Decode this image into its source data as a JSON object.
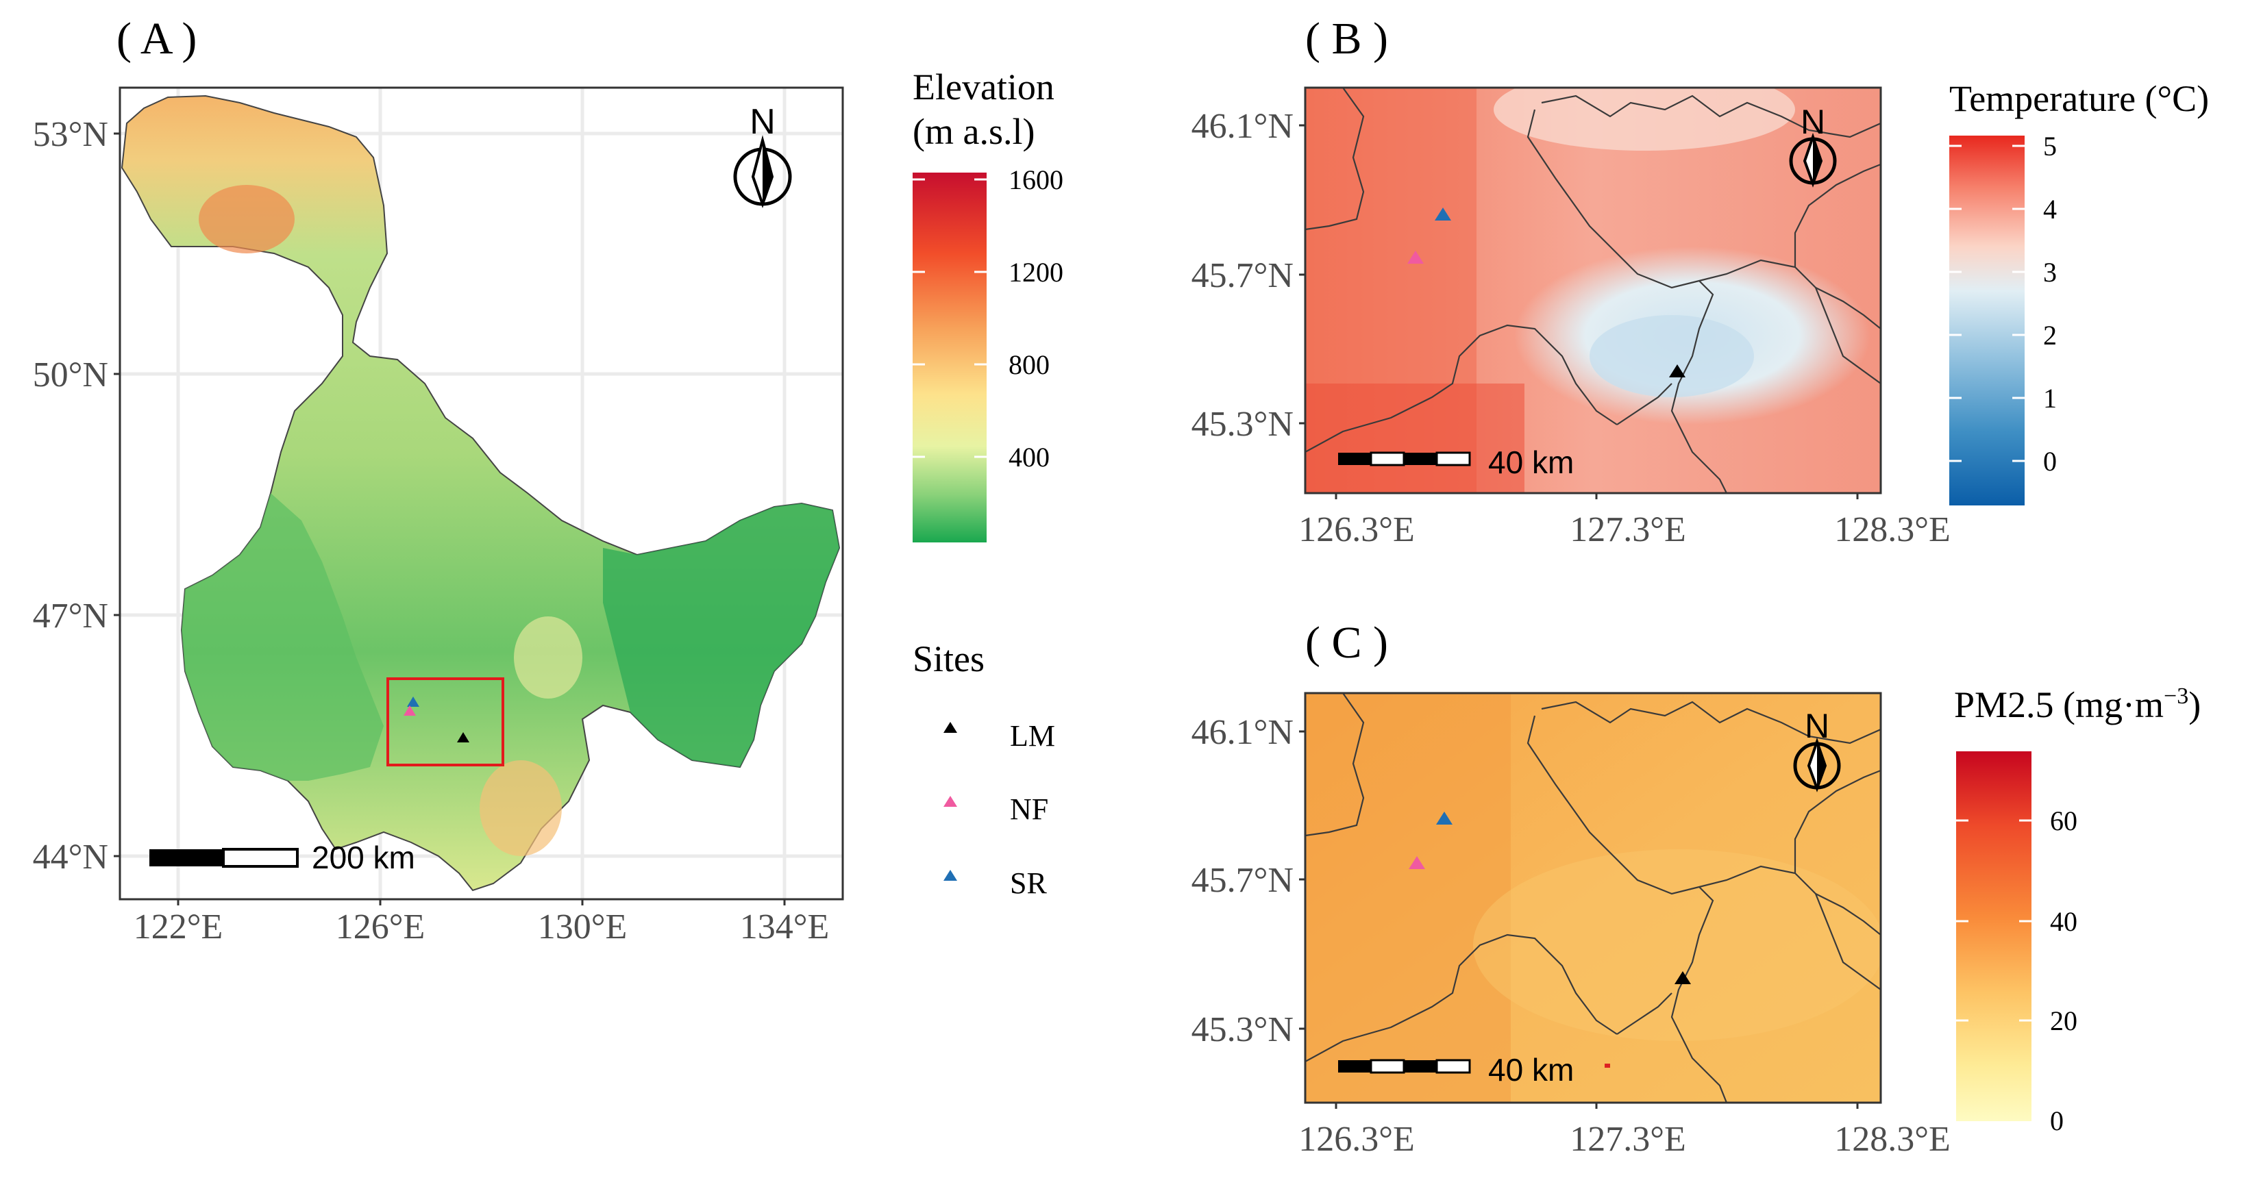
{
  "panels": {
    "A": {
      "label": "( A )",
      "lat_labels": [
        "53°N",
        "50°N",
        "47°N",
        "44°N"
      ],
      "lon_labels": [
        "122°E",
        "126°E",
        "130°E",
        "134°E"
      ],
      "scale_label": "200 km",
      "north_label": "N",
      "elevation_legend": {
        "title_line1": "Elevation",
        "title_line2": "(m a.s.l)",
        "ticks": [
          "1600",
          "1200",
          "800",
          "400"
        ],
        "colors": [
          "#c70f2e",
          "#f24e2a",
          "#f7a159",
          "#fde28b",
          "#e7f3a3",
          "#8bd27a",
          "#1aa84f"
        ]
      },
      "sites_legend": {
        "title": "Sites",
        "items": [
          {
            "name": "LM",
            "color": "#000000"
          },
          {
            "name": "NF",
            "color": "#f05aa0"
          },
          {
            "name": "SR",
            "color": "#1f6fb4"
          }
        ]
      }
    },
    "B": {
      "label": "( B )",
      "lat_labels": [
        "46.1°N",
        "45.7°N",
        "45.3°N"
      ],
      "lon_labels": [
        "126.3°E",
        "127.3°E",
        "128.3°E"
      ],
      "scale_label": "40 km",
      "north_label": "N",
      "temperature_legend": {
        "title": "Temperature (°C)",
        "ticks": [
          "5",
          "4",
          "3",
          "2",
          "1",
          "0"
        ],
        "colors": [
          "#e8281e",
          "#f6806b",
          "#fbd4c6",
          "#e1eef4",
          "#93c2df",
          "#3f8fc4",
          "#0b5ea8"
        ]
      }
    },
    "C": {
      "label": "( C )",
      "lat_labels": [
        "46.1°N",
        "45.7°N",
        "45.3°N"
      ],
      "lon_labels": [
        "126.3°E",
        "127.3°E",
        "128.3°E"
      ],
      "scale_label": "40 km",
      "north_label": "N",
      "pm_legend": {
        "title": "PM2.5 (mg·m",
        "title_sup": "−3",
        "title_end": ")",
        "ticks": [
          "60",
          "40",
          "20",
          "0"
        ],
        "colors": [
          "#c7061f",
          "#ee4a2a",
          "#f98b3a",
          "#fdc364",
          "#feeb96",
          "#fefbc2"
        ]
      }
    }
  }
}
